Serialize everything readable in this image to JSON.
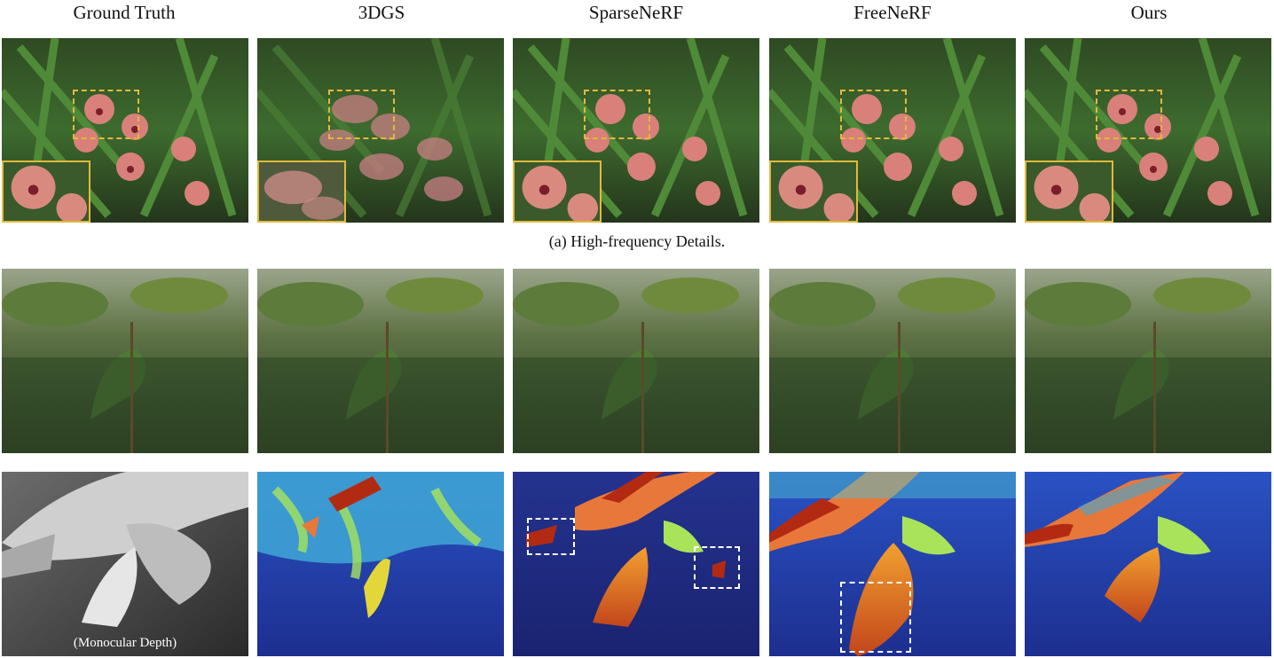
{
  "columns": [
    {
      "label": "Ground Truth"
    },
    {
      "label": "3DGS"
    },
    {
      "label": "SparseNeRF"
    },
    {
      "label": "FreeNeRF"
    },
    {
      "label": "Ours"
    }
  ],
  "caption_a": "(a) High-frequency Details.",
  "depth_note": "(Monocular Depth)",
  "colors": {
    "highlight_box": "#e2b93b",
    "dashed_box": "#ffffff",
    "depth_high": "#b32a12",
    "depth_low": "#1b2b88"
  }
}
